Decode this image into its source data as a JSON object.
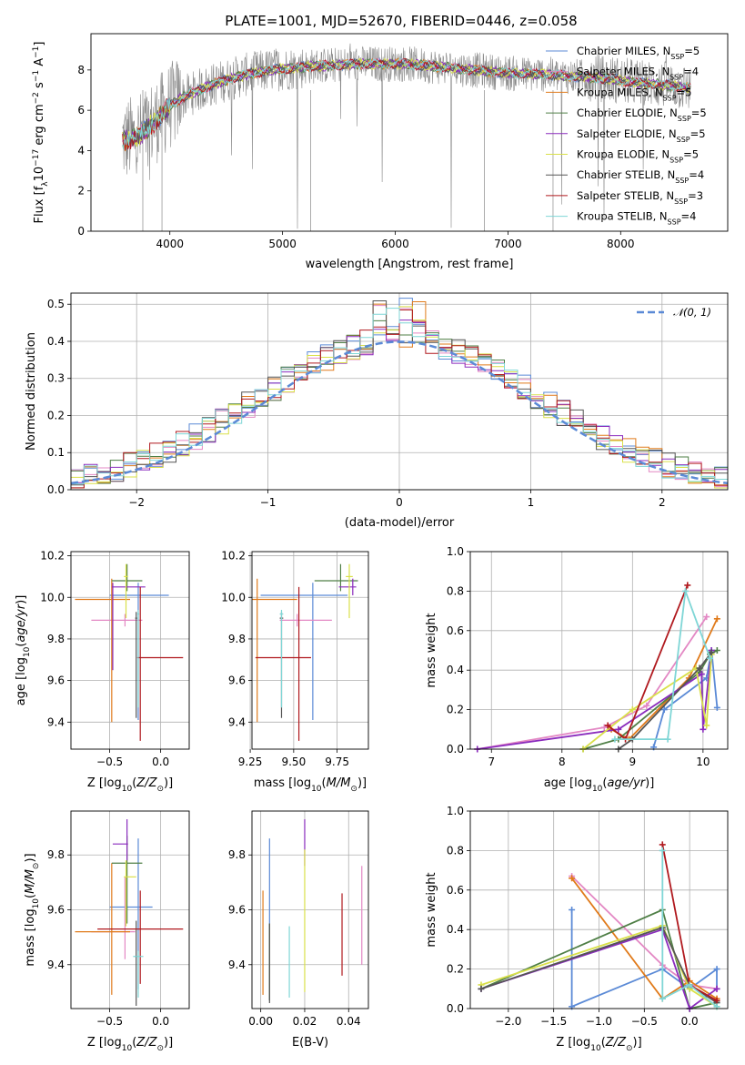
{
  "chart_data": [
    {
      "id": "spectrum",
      "type": "line",
      "title": "PLATE=1001, MJD=52670, FIBERID=0446, z=0.058",
      "xlabel": "wavelength [Angstrom, rest frame]",
      "ylabel": "Flux [f$_\\lambda$ 10$^{-17}$ erg cm$^{-2}$ s$^{-1}$ A$^{-1}$]",
      "xlim": [
        3300,
        8950
      ],
      "ylim": [
        0,
        9.8
      ],
      "xticks": [
        4000,
        5000,
        6000,
        7000,
        8000
      ],
      "yticks": [
        0,
        2,
        4,
        6,
        8
      ],
      "grid": false,
      "legend_position": "right",
      "legend": [
        {
          "label": "Chabrier MILES, N",
          "sub": "SSP",
          "suffix": "=5",
          "color": "#5b8ad6"
        },
        {
          "label": "Salpeter MILES, N",
          "sub": "SSP",
          "suffix": "=4",
          "color": "#e388c4"
        },
        {
          "label": "Kroupa MILES, N",
          "sub": "SSP",
          "suffix": "=5",
          "color": "#e07a1a"
        },
        {
          "label": "Chabrier ELODIE, N",
          "sub": "SSP",
          "suffix": "=5",
          "color": "#4f7f46"
        },
        {
          "label": "Salpeter ELODIE, N",
          "sub": "SSP",
          "suffix": "=5",
          "color": "#8a2bbd"
        },
        {
          "label": "Kroupa ELODIE, N",
          "sub": "SSP",
          "suffix": "=5",
          "color": "#d9e04a"
        },
        {
          "label": "Chabrier STELIB, N",
          "sub": "SSP",
          "suffix": "=4",
          "color": "#555555"
        },
        {
          "label": "Salpeter STELIB, N",
          "sub": "SSP",
          "suffix": "=3",
          "color": "#b0191e"
        },
        {
          "label": "Kroupa STELIB, N",
          "sub": "SSP",
          "suffix": "=4",
          "color": "#7fd6d6"
        }
      ],
      "continuum": {
        "x": [
          3580,
          3700,
          3800,
          3900,
          4000,
          4100,
          4300,
          4500,
          4700,
          4900,
          5100,
          5300,
          5500,
          5700,
          5900,
          6100,
          6300,
          6500,
          6700,
          6900,
          7100,
          7300,
          7500,
          7700,
          7900,
          8100,
          8300,
          8500,
          8600
        ],
        "y": [
          4.5,
          4.6,
          5.1,
          5.6,
          6.2,
          6.6,
          7.1,
          7.5,
          7.8,
          8.0,
          8.1,
          8.2,
          8.25,
          8.3,
          8.3,
          8.3,
          8.2,
          8.1,
          8.0,
          7.9,
          7.8,
          7.8,
          7.7,
          7.65,
          7.55,
          7.4,
          7.3,
          7.2,
          7.1
        ]
      }
    },
    {
      "id": "residuals",
      "type": "histogram",
      "xlabel": "(data-model)/error",
      "ylabel": "Normed distribution",
      "xlim": [
        -2.5,
        2.5
      ],
      "ylim": [
        0,
        0.53
      ],
      "xticks": [
        -2,
        -1,
        0,
        1,
        2
      ],
      "yticks": [
        0.0,
        0.1,
        0.2,
        0.3,
        0.4,
        0.5
      ],
      "grid": true,
      "legend_position": "top-right",
      "legend": [
        {
          "label": "N(0,1)",
          "color": "#5b8ad6",
          "style": "dashed"
        }
      ],
      "bins": 50,
      "bin_width": 0.1,
      "reference_curve": "normal pdf, mean 0, sigma 1",
      "peak_values_approx": [
        0.51,
        0.49,
        0.46,
        0.45,
        0.45
      ]
    },
    {
      "id": "age-vs-Z",
      "type": "errorbar",
      "xlabel": "Z [log10(Z/Z☉)]",
      "ylabel": "age [log10(age/yr)]",
      "xlim": [
        -0.88,
        0.28
      ],
      "ylim": [
        9.27,
        10.22
      ],
      "xticks": [
        -0.5,
        0.0
      ],
      "yticks": [
        9.4,
        9.6,
        9.8,
        10.0,
        10.2
      ],
      "points": [
        {
          "x": -0.22,
          "y": 10.01,
          "xerr": [
            0.28,
            0.3
          ],
          "yerr": [
            0.6,
            0.06
          ],
          "color": "#5b8ad6"
        },
        {
          "x": -0.35,
          "y": 9.89,
          "xerr": [
            0.33,
            0.17
          ],
          "yerr": [
            0.03,
            0.03
          ],
          "color": "#e388c4"
        },
        {
          "x": -0.48,
          "y": 9.99,
          "xerr": [
            0.36,
            0.18
          ],
          "yerr": [
            0.59,
            0.1
          ],
          "color": "#e07a1a"
        },
        {
          "x": -0.33,
          "y": 10.08,
          "xerr": [
            0.15,
            0.15
          ],
          "yerr": [
            0.05,
            0.08
          ],
          "color": "#4f7f46"
        },
        {
          "x": -0.47,
          "y": 10.05,
          "xerr": [
            0.01,
            0.32
          ],
          "yerr": [
            0.4,
            0.02
          ],
          "color": "#8a2bbd"
        },
        {
          "x": -0.34,
          "y": 10.1,
          "xerr": [
            0.02,
            0.02
          ],
          "yerr": [
            0.2,
            0.06
          ],
          "color": "#d9e04a"
        },
        {
          "x": -0.24,
          "y": 9.9,
          "xerr": [
            0.01,
            0.01
          ],
          "yerr": [
            0.48,
            0.03
          ],
          "color": "#555555"
        },
        {
          "x": -0.2,
          "y": 9.71,
          "xerr": [
            0.03,
            0.42
          ],
          "yerr": [
            0.4,
            0.34
          ],
          "color": "#b0191e"
        },
        {
          "x": -0.22,
          "y": 9.92,
          "xerr": [
            0.01,
            0.01
          ],
          "yerr": [
            0.45,
            0.02
          ],
          "color": "#7fd6d6"
        }
      ]
    },
    {
      "id": "age-vs-mass",
      "type": "errorbar",
      "xlabel": "mass [log10(M/M☉)]",
      "ylabel": "",
      "xlim": [
        9.26,
        9.93
      ],
      "ylim": [
        9.27,
        10.22
      ],
      "xticks": [
        9.25,
        9.5,
        9.75
      ],
      "yticks": [
        9.4,
        9.6,
        9.8,
        10.0,
        10.2
      ],
      "points": [
        {
          "x": 9.61,
          "y": 10.01,
          "xerr": [
            0.3,
            0.2
          ],
          "yerr": [
            0.6,
            0.06
          ],
          "color": "#5b8ad6"
        },
        {
          "x": 9.52,
          "y": 9.89,
          "xerr": [
            0.1,
            0.2
          ],
          "yerr": [
            0.03,
            0.03
          ],
          "color": "#e388c4"
        },
        {
          "x": 9.29,
          "y": 9.99,
          "xerr": [
            0.05,
            0.23
          ],
          "yerr": [
            0.59,
            0.1
          ],
          "color": "#e07a1a"
        },
        {
          "x": 9.77,
          "y": 10.08,
          "xerr": [
            0.15,
            0.1
          ],
          "yerr": [
            0.05,
            0.08
          ],
          "color": "#4f7f46"
        },
        {
          "x": 9.84,
          "y": 10.05,
          "xerr": [
            0.08,
            0.02
          ],
          "yerr": [
            0.04,
            0.04
          ],
          "color": "#8a2bbd"
        },
        {
          "x": 9.82,
          "y": 10.1,
          "xerr": [
            0.02,
            0.02
          ],
          "yerr": [
            0.2,
            0.06
          ],
          "color": "#d9e04a"
        },
        {
          "x": 9.43,
          "y": 9.9,
          "xerr": [
            0.01,
            0.01
          ],
          "yerr": [
            0.48,
            0.03
          ],
          "color": "#555555"
        },
        {
          "x": 9.53,
          "y": 9.71,
          "xerr": [
            0.25,
            0.07
          ],
          "yerr": [
            0.4,
            0.34
          ],
          "color": "#b0191e"
        },
        {
          "x": 9.43,
          "y": 9.92,
          "xerr": [
            0.01,
            0.01
          ],
          "yerr": [
            0.45,
            0.02
          ],
          "color": "#7fd6d6"
        }
      ]
    },
    {
      "id": "mass-weight-vs-age",
      "type": "line",
      "xlabel": "age [log10(age/yr)]",
      "ylabel": "mass weight",
      "xlim": [
        6.7,
        10.35
      ],
      "ylim": [
        0,
        1.0
      ],
      "xticks": [
        7,
        8,
        9,
        10
      ],
      "yticks": [
        0.0,
        0.2,
        0.4,
        0.6,
        0.8,
        1.0
      ],
      "grid": true,
      "series": [
        {
          "color": "#5b8ad6",
          "x": [
            9.3,
            9.45,
            10.05,
            10.12,
            10.2
          ],
          "y": [
            0.01,
            0.2,
            0.36,
            0.5,
            0.21
          ]
        },
        {
          "color": "#e388c4",
          "x": [
            6.8,
            8.6,
            9.2,
            10.05
          ],
          "y": [
            0.0,
            0.11,
            0.22,
            0.67
          ]
        },
        {
          "color": "#e07a1a",
          "x": [
            8.7,
            8.95,
            9.8,
            10.2
          ],
          "y": [
            0.1,
            0.05,
            0.36,
            0.66
          ]
        },
        {
          "color": "#4f7f46",
          "x": [
            8.3,
            8.8,
            9.95,
            10.1,
            10.2
          ],
          "y": [
            0.0,
            0.05,
            0.39,
            0.48,
            0.5
          ]
        },
        {
          "color": "#8a2bbd",
          "x": [
            6.8,
            8.8,
            9.98,
            10.0,
            10.12
          ],
          "y": [
            0.0,
            0.1,
            0.38,
            0.1,
            0.5
          ]
        },
        {
          "color": "#d9e04a",
          "x": [
            8.3,
            9.0,
            9.9,
            10.05,
            10.12
          ],
          "y": [
            0.0,
            0.2,
            0.41,
            0.12,
            0.48
          ]
        },
        {
          "color": "#555555",
          "x": [
            8.8,
            9.0,
            9.95,
            10.12
          ],
          "y": [
            0.0,
            0.05,
            0.41,
            0.49
          ]
        },
        {
          "color": "#b0191e",
          "x": [
            8.65,
            8.9,
            9.78
          ],
          "y": [
            0.12,
            0.05,
            0.83
          ]
        },
        {
          "color": "#7fd6d6",
          "x": [
            8.75,
            9.5,
            9.75,
            10.1
          ],
          "y": [
            0.05,
            0.05,
            0.8,
            0.46
          ]
        }
      ]
    },
    {
      "id": "mass-vs-Z",
      "type": "errorbar",
      "xlabel": "Z [log10(Z/Z☉)]",
      "ylabel": "mass [log10(M/M☉)]",
      "xlim": [
        -0.88,
        0.28
      ],
      "ylim": [
        9.24,
        9.96
      ],
      "xticks": [
        -0.5,
        0.0
      ],
      "yticks": [
        9.4,
        9.6,
        9.8
      ],
      "points": [
        {
          "x": -0.22,
          "y": 9.61,
          "xerr": [
            0.28,
            0.14
          ],
          "yerr": [
            0.3,
            0.25
          ],
          "color": "#5b8ad6"
        },
        {
          "x": -0.35,
          "y": 9.52,
          "xerr": [
            0.33,
            0.1
          ],
          "yerr": [
            0.1,
            0.2
          ],
          "color": "#e388c4"
        },
        {
          "x": -0.48,
          "y": 9.52,
          "xerr": [
            0.36,
            0.18
          ],
          "yerr": [
            0.23,
            0.25
          ],
          "color": "#e07a1a"
        },
        {
          "x": -0.33,
          "y": 9.77,
          "xerr": [
            0.15,
            0.15
          ],
          "yerr": [
            0.22,
            0.1
          ],
          "color": "#4f7f46"
        },
        {
          "x": -0.33,
          "y": 9.84,
          "xerr": [
            0.14,
            0.01
          ],
          "yerr": [
            0.06,
            0.09
          ],
          "color": "#8a2bbd"
        },
        {
          "x": -0.34,
          "y": 9.72,
          "xerr": [
            0.02,
            0.1
          ],
          "yerr": [
            0.18,
            0.06
          ],
          "color": "#d9e04a"
        },
        {
          "x": -0.24,
          "y": 9.43,
          "xerr": [
            0.01,
            0.01
          ],
          "yerr": [
            0.18,
            0.13
          ],
          "color": "#555555"
        },
        {
          "x": -0.2,
          "y": 9.53,
          "xerr": [
            0.42,
            0.42
          ],
          "yerr": [
            0.2,
            0.14
          ],
          "color": "#b0191e"
        },
        {
          "x": -0.22,
          "y": 9.43,
          "xerr": [
            0.05,
            0.05
          ],
          "yerr": [
            0.15,
            0.02
          ],
          "color": "#7fd6d6"
        }
      ]
    },
    {
      "id": "mass-vs-ebv",
      "type": "errorbar",
      "xlabel": "E(B-V)",
      "ylabel": "",
      "xlim": [
        -0.004,
        0.049
      ],
      "ylim": [
        9.24,
        9.96
      ],
      "xticks": [
        0.0,
        0.02,
        0.04
      ],
      "yticks": [
        9.4,
        9.6,
        9.8
      ],
      "points": [
        {
          "x": 0.004,
          "y": 9.61,
          "yerr": [
            0.34,
            0.25
          ],
          "color": "#5b8ad6"
        },
        {
          "x": 0.046,
          "y": 9.52,
          "yerr": [
            0.12,
            0.24
          ],
          "color": "#e388c4"
        },
        {
          "x": 0.001,
          "y": 9.52,
          "yerr": [
            0.23,
            0.15
          ],
          "color": "#e07a1a"
        },
        {
          "x": 0.004,
          "y": 9.42,
          "yerr": [
            0.15,
            0.13
          ],
          "color": "#4f7f46"
        },
        {
          "x": 0.02,
          "y": 9.84,
          "yerr": [
            0.08,
            0.09
          ],
          "color": "#8a2bbd"
        },
        {
          "x": 0.02,
          "y": 9.72,
          "yerr": [
            0.42,
            0.1
          ],
          "color": "#d9e04a"
        },
        {
          "x": 0.004,
          "y": 9.42,
          "yerr": [
            0.16,
            0.13
          ],
          "color": "#555555"
        },
        {
          "x": 0.037,
          "y": 9.51,
          "yerr": [
            0.15,
            0.15
          ],
          "color": "#b0191e"
        },
        {
          "x": 0.013,
          "y": 9.41,
          "yerr": [
            0.13,
            0.13
          ],
          "color": "#7fd6d6"
        }
      ]
    },
    {
      "id": "mass-weight-vs-Z",
      "type": "line",
      "xlabel": "Z [log10(Z/Z☉)]",
      "ylabel": "mass weight",
      "xlim": [
        -2.42,
        0.42
      ],
      "ylim": [
        0,
        1.0
      ],
      "xticks": [
        -2.0,
        -1.5,
        -1.0,
        -0.5,
        0.0
      ],
      "yticks": [
        0.0,
        0.2,
        0.4,
        0.6,
        0.8,
        1.0
      ],
      "grid": true,
      "series": [
        {
          "color": "#5b8ad6",
          "x": [
            -1.3,
            -1.3,
            -0.3,
            0.0,
            0.3,
            0.3
          ],
          "y": [
            0.5,
            0.01,
            0.2,
            0.1,
            0.2,
            0.1
          ]
        },
        {
          "color": "#e388c4",
          "x": [
            -1.3,
            -0.3,
            0.0,
            0.3
          ],
          "y": [
            0.67,
            0.22,
            0.12,
            0.1
          ]
        },
        {
          "color": "#e07a1a",
          "x": [
            -1.3,
            -0.3,
            0.0,
            0.3
          ],
          "y": [
            0.66,
            0.05,
            0.14,
            0.05
          ]
        },
        {
          "color": "#4f7f46",
          "x": [
            -2.3,
            -0.3,
            0.0,
            0.3
          ],
          "y": [
            0.1,
            0.5,
            0.0,
            0.03
          ]
        },
        {
          "color": "#8a2bbd",
          "x": [
            -2.3,
            -0.3,
            0.0,
            0.3
          ],
          "y": [
            0.1,
            0.4,
            0.0,
            0.1
          ]
        },
        {
          "color": "#d9e04a",
          "x": [
            -2.3,
            -0.3,
            0.0,
            0.3
          ],
          "y": [
            0.12,
            0.42,
            0.1,
            0.01
          ]
        },
        {
          "color": "#555555",
          "x": [
            -2.3,
            -0.3,
            -0.0,
            0.3
          ],
          "y": [
            0.1,
            0.41,
            0.12,
            0.03
          ]
        },
        {
          "color": "#b0191e",
          "x": [
            -0.3,
            0.0,
            0.3
          ],
          "y": [
            0.83,
            0.12,
            0.04
          ]
        },
        {
          "color": "#7fd6d6",
          "x": [
            -0.3,
            -0.3,
            0.0,
            0.3
          ],
          "y": [
            0.8,
            0.05,
            0.12,
            0.01
          ]
        }
      ]
    }
  ]
}
